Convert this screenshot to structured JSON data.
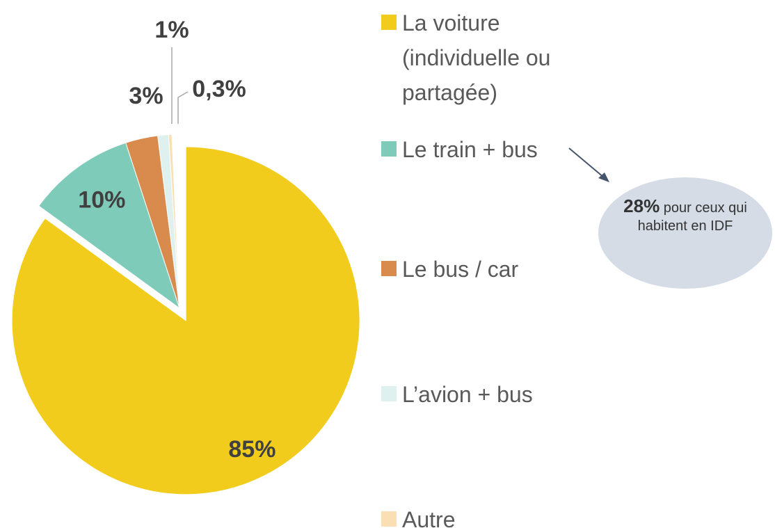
{
  "chart_data": {
    "type": "pie",
    "categories": [
      "La voiture (individuelle ou partagée)",
      "Le train + bus",
      "Le bus / car",
      "L’avion + bus",
      "Autre"
    ],
    "values": [
      85,
      10,
      3,
      1,
      0.3
    ],
    "value_labels": [
      "85%",
      "10%",
      "3%",
      "1%",
      "0,3%"
    ],
    "colors": [
      "#f2cc1c",
      "#7ecbb9",
      "#d98b4e",
      "#dff1ef",
      "#f9dfb3"
    ],
    "exploded": [
      true,
      false,
      false,
      false,
      false
    ],
    "annotation": {
      "bold": "28%",
      "text": "pour ceux qui habitent en IDF"
    }
  }
}
